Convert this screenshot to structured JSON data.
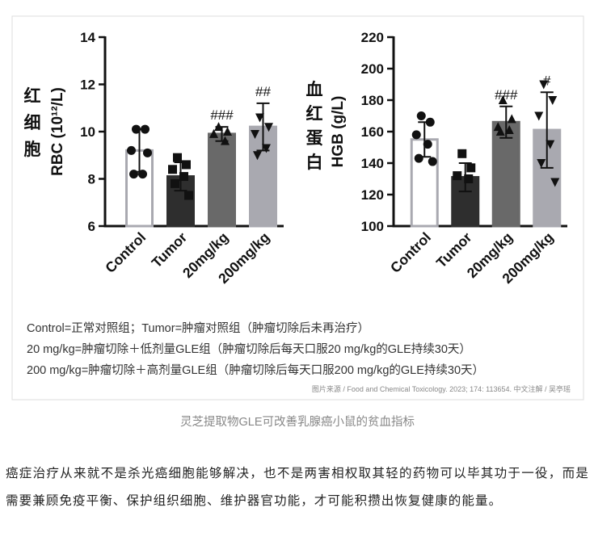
{
  "chart_data": [
    {
      "type": "bar",
      "ylabel_zh": "红细胞",
      "ylabel": "RBC (10¹²/L)",
      "categories": [
        "Control",
        "Tumor",
        "20mg/kg",
        "200mg/kg"
      ],
      "values": [
        9.2,
        8.1,
        9.9,
        10.2
      ],
      "errors": [
        0.9,
        0.6,
        0.3,
        1.0
      ],
      "points": [
        [
          10.1,
          10.1,
          9.2,
          8.2,
          8.2,
          9.1
        ],
        [
          8.9,
          8.6,
          8.4,
          8.1,
          7.8,
          7.3
        ],
        [
          10.2,
          10.0,
          9.9,
          9.6
        ],
        [
          10.6,
          10.2,
          9.9,
          9.3,
          9.0
        ]
      ],
      "colors": [
        "#ffffff",
        "#2e2e2e",
        "#696969",
        "#a9a9b0"
      ],
      "edge_colors": [
        "#a9a9b0",
        "#2e2e2e",
        "#696969",
        "#a9a9b0"
      ],
      "markers": [
        "circle",
        "square",
        "triangle-up",
        "triangle-down"
      ],
      "annotations": [
        null,
        null,
        "###",
        "##"
      ],
      "ylim": [
        6,
        14
      ],
      "yticks": [
        6,
        8,
        10,
        12,
        14
      ]
    },
    {
      "type": "bar",
      "ylabel_zh": "血红蛋白",
      "ylabel": "HGB (g/L)",
      "categories": [
        "Control",
        "Tumor",
        "20mg/kg",
        "200mg/kg"
      ],
      "values": [
        155,
        131,
        166,
        161
      ],
      "errors": [
        11,
        9,
        10,
        24
      ],
      "points": [
        [
          170,
          166,
          158,
          152,
          143,
          141
        ],
        [
          146,
          137,
          132,
          130
        ],
        [
          180,
          168,
          163,
          161,
          160
        ],
        [
          190,
          180,
          170,
          152,
          140,
          128
        ]
      ],
      "colors": [
        "#ffffff",
        "#2e2e2e",
        "#696969",
        "#a9a9b0"
      ],
      "edge_colors": [
        "#a9a9b0",
        "#2e2e2e",
        "#696969",
        "#a9a9b0"
      ],
      "markers": [
        "circle",
        "square",
        "triangle-up",
        "triangle-down"
      ],
      "annotations": [
        null,
        null,
        "###",
        "#"
      ],
      "ylim": [
        100,
        220
      ],
      "yticks": [
        100,
        120,
        140,
        160,
        180,
        200,
        220
      ]
    }
  ],
  "notes": [
    "Control=正常对照组；Tumor=肿瘤对照组（肿瘤切除后未再治疗）",
    "20 mg/kg=肿瘤切除＋低剂量GLE组（肿瘤切除后每天口服20 mg/kg的GLE持续30天）",
    "200 mg/kg=肿瘤切除＋高剂量GLE组（肿瘤切除后每天口服200 mg/kg的GLE持续30天）"
  ],
  "source": "图片来源 / Food and Chemical Toxicology. 2023; 174: 113654.   中文注解 / 吴亭瑶",
  "caption": "灵芝提取物GLE可改善乳腺癌小鼠的贫血指标",
  "paragraph": "癌症治疗从来就不是杀光癌细胞能够解决，也不是两害相权取其轻的药物可以毕其功于一役，而是需要兼顾免疫平衡、保护组织细胞、维护器官功能，才可能积攒出恢复健康的能量。"
}
